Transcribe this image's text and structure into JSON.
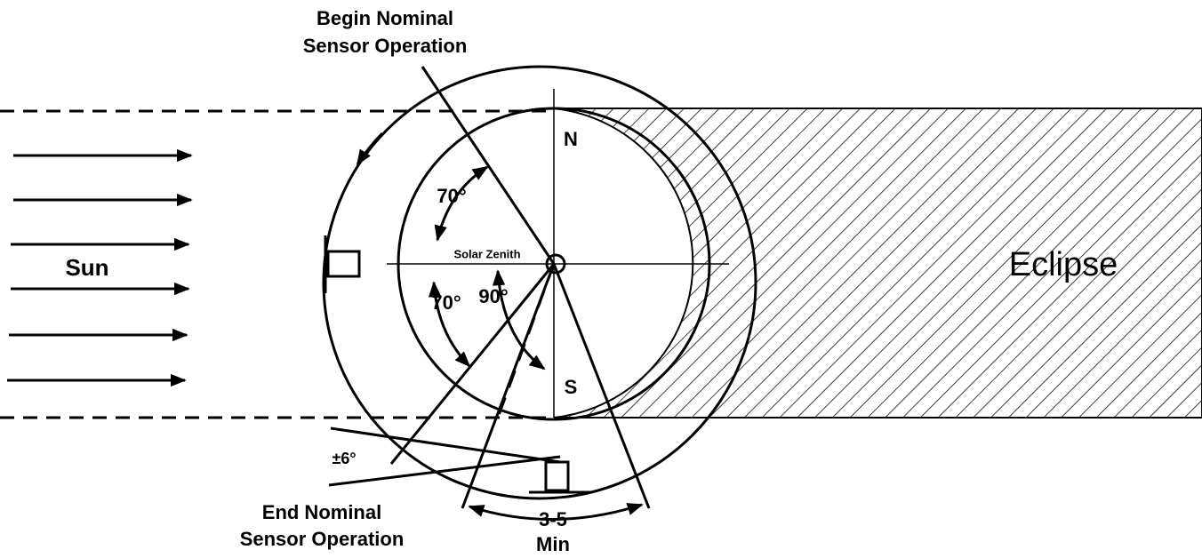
{
  "labels": {
    "begin": [
      "Begin Nominal",
      "Sensor Operation"
    ],
    "north": "N",
    "south": "S",
    "upper_angle": "70°",
    "lower_angle": "70°",
    "right_angle": "90°",
    "zenith": "Solar Zenith",
    "sun": "Sun",
    "eclipse": "Eclipse",
    "tolerance": "±6°",
    "end": [
      "End Nominal",
      "Sensor Operation"
    ],
    "duration": [
      "3-5",
      "Min"
    ]
  }
}
